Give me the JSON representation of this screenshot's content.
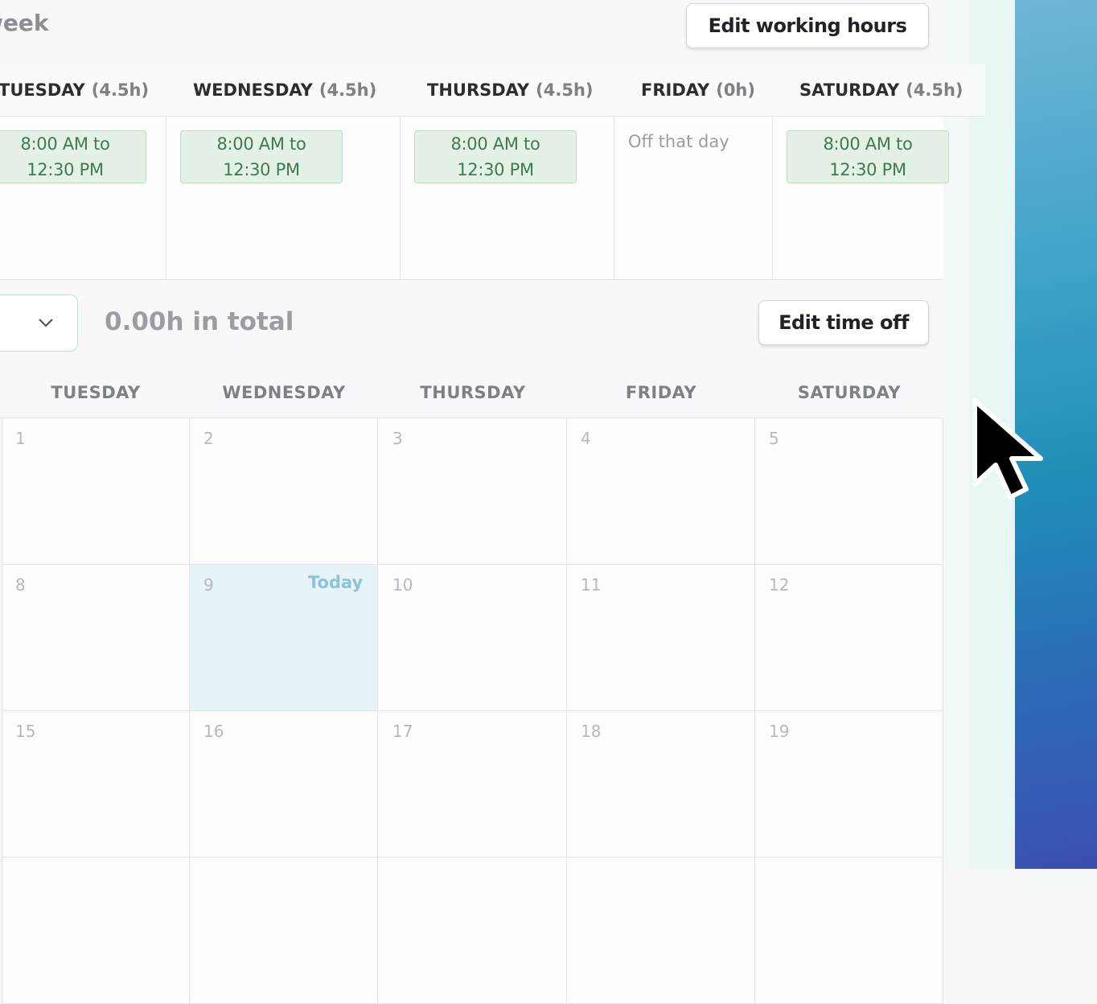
{
  "header": {
    "title": "week",
    "button": "Edit working hours"
  },
  "working_hours": {
    "days": [
      {
        "name": "TUESDAY",
        "hours": "(4.5h)",
        "shift_start": "8:00 AM to",
        "shift_end": "12:30 PM"
      },
      {
        "name": "WEDNESDAY",
        "hours": "(4.5h)",
        "shift_start": "8:00 AM to",
        "shift_end": "12:30 PM"
      },
      {
        "name": "THURSDAY",
        "hours": "(4.5h)",
        "shift_start": "8:00 AM to",
        "shift_end": "12:30 PM"
      },
      {
        "name": "FRIDAY",
        "hours": "(0h)",
        "note": "Off that day"
      },
      {
        "name": "SATURDAY",
        "hours": "(4.5h)",
        "shift_start": "8:00 AM to",
        "shift_end": "12:30 PM"
      }
    ]
  },
  "time_off": {
    "total": "0.00h in total",
    "button": "Edit time off"
  },
  "calendar": {
    "weekdays": [
      "TUESDAY",
      "WEDNESDAY",
      "THURSDAY",
      "FRIDAY",
      "SATURDAY"
    ],
    "weeks": [
      [
        "1",
        "2",
        "3",
        "4",
        "5"
      ],
      [
        "8",
        "9",
        "10",
        "11",
        "12"
      ],
      [
        "15",
        "16",
        "17",
        "18",
        "19"
      ]
    ],
    "today_label": "Today"
  }
}
